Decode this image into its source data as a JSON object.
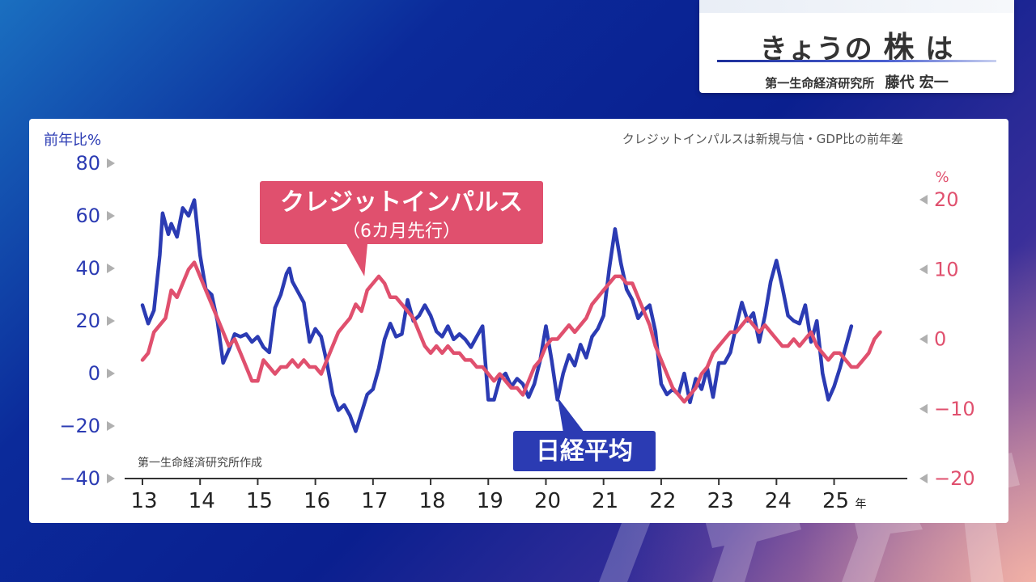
{
  "header": {
    "title_pre": "きょうの",
    "title_strong": "株",
    "title_post": "は",
    "org": "第一生命経済研究所",
    "person": "藤代 宏一"
  },
  "chart_data": {
    "type": "line",
    "note": "クレジットインパルスは新規与信・GDP比の前年差",
    "source": "第一生命経済研究所作成",
    "left_axis": {
      "unit": "前年比%",
      "ticks": [
        80,
        60,
        40,
        20,
        0,
        -20,
        -40
      ],
      "range": [
        -40,
        80
      ]
    },
    "right_axis": {
      "unit": "%",
      "ticks": [
        20,
        10,
        0,
        -10,
        -20
      ],
      "range": [
        -20,
        20
      ]
    },
    "x_axis": {
      "unit": "年",
      "ticks": [
        "13",
        "14",
        "15",
        "16",
        "17",
        "18",
        "19",
        "20",
        "21",
        "22",
        "23",
        "24",
        "25"
      ],
      "range": [
        2013.0,
        2026.2
      ]
    },
    "series": [
      {
        "name": "日経平均",
        "axis": "left",
        "color": "#2b3bb3",
        "points": [
          [
            2013.0,
            26
          ],
          [
            2013.1,
            19
          ],
          [
            2013.2,
            24
          ],
          [
            2013.3,
            45
          ],
          [
            2013.35,
            61
          ],
          [
            2013.45,
            53
          ],
          [
            2013.5,
            57
          ],
          [
            2013.6,
            52
          ],
          [
            2013.7,
            63
          ],
          [
            2013.8,
            60
          ],
          [
            2013.9,
            66
          ],
          [
            2014.0,
            45
          ],
          [
            2014.1,
            32
          ],
          [
            2014.2,
            30
          ],
          [
            2014.3,
            20
          ],
          [
            2014.4,
            4
          ],
          [
            2014.5,
            9
          ],
          [
            2014.6,
            15
          ],
          [
            2014.7,
            14
          ],
          [
            2014.8,
            15
          ],
          [
            2014.9,
            12
          ],
          [
            2015.0,
            14
          ],
          [
            2015.1,
            10
          ],
          [
            2015.2,
            8
          ],
          [
            2015.3,
            25
          ],
          [
            2015.4,
            30
          ],
          [
            2015.5,
            38
          ],
          [
            2015.55,
            40
          ],
          [
            2015.6,
            35
          ],
          [
            2015.7,
            31
          ],
          [
            2015.8,
            27
          ],
          [
            2015.9,
            12
          ],
          [
            2016.0,
            17
          ],
          [
            2016.1,
            14
          ],
          [
            2016.2,
            4
          ],
          [
            2016.3,
            -8
          ],
          [
            2016.4,
            -14
          ],
          [
            2016.5,
            -12
          ],
          [
            2016.6,
            -16
          ],
          [
            2016.7,
            -22
          ],
          [
            2016.8,
            -15
          ],
          [
            2016.9,
            -8
          ],
          [
            2017.0,
            -6
          ],
          [
            2017.1,
            2
          ],
          [
            2017.2,
            13
          ],
          [
            2017.3,
            19
          ],
          [
            2017.4,
            14
          ],
          [
            2017.5,
            15
          ],
          [
            2017.6,
            28
          ],
          [
            2017.7,
            20
          ],
          [
            2017.8,
            22
          ],
          [
            2017.9,
            26
          ],
          [
            2018.0,
            22
          ],
          [
            2018.1,
            16
          ],
          [
            2018.2,
            14
          ],
          [
            2018.3,
            18
          ],
          [
            2018.4,
            13
          ],
          [
            2018.5,
            15
          ],
          [
            2018.6,
            13
          ],
          [
            2018.7,
            10
          ],
          [
            2018.8,
            14
          ],
          [
            2018.9,
            18
          ],
          [
            2019.0,
            -10
          ],
          [
            2019.1,
            -10
          ],
          [
            2019.2,
            -2
          ],
          [
            2019.3,
            0
          ],
          [
            2019.4,
            -5
          ],
          [
            2019.5,
            -2
          ],
          [
            2019.6,
            -4
          ],
          [
            2019.7,
            -9
          ],
          [
            2019.8,
            -4
          ],
          [
            2019.9,
            5
          ],
          [
            2020.0,
            18
          ],
          [
            2020.1,
            5
          ],
          [
            2020.2,
            -10
          ],
          [
            2020.3,
            0
          ],
          [
            2020.4,
            7
          ],
          [
            2020.5,
            3
          ],
          [
            2020.6,
            11
          ],
          [
            2020.7,
            6
          ],
          [
            2020.8,
            14
          ],
          [
            2020.9,
            17
          ],
          [
            2021.0,
            22
          ],
          [
            2021.1,
            40
          ],
          [
            2021.2,
            55
          ],
          [
            2021.3,
            42
          ],
          [
            2021.4,
            32
          ],
          [
            2021.5,
            28
          ],
          [
            2021.6,
            21
          ],
          [
            2021.7,
            24
          ],
          [
            2021.8,
            26
          ],
          [
            2021.9,
            16
          ],
          [
            2022.0,
            -4
          ],
          [
            2022.1,
            -8
          ],
          [
            2022.2,
            -6
          ],
          [
            2022.3,
            -8
          ],
          [
            2022.4,
            0
          ],
          [
            2022.5,
            -11
          ],
          [
            2022.6,
            -2
          ],
          [
            2022.7,
            -6
          ],
          [
            2022.8,
            2
          ],
          [
            2022.9,
            -9
          ],
          [
            2023.0,
            4
          ],
          [
            2023.1,
            4
          ],
          [
            2023.2,
            8
          ],
          [
            2023.3,
            18
          ],
          [
            2023.4,
            27
          ],
          [
            2023.5,
            20
          ],
          [
            2023.6,
            23
          ],
          [
            2023.7,
            12
          ],
          [
            2023.8,
            22
          ],
          [
            2023.9,
            35
          ],
          [
            2024.0,
            43
          ],
          [
            2024.1,
            33
          ],
          [
            2024.2,
            22
          ],
          [
            2024.3,
            20
          ],
          [
            2024.4,
            19
          ],
          [
            2024.5,
            26
          ],
          [
            2024.6,
            12
          ],
          [
            2024.7,
            20
          ],
          [
            2024.8,
            0
          ],
          [
            2024.9,
            -10
          ],
          [
            2025.0,
            -5
          ],
          [
            2025.1,
            2
          ],
          [
            2025.2,
            10
          ],
          [
            2025.3,
            18
          ]
        ]
      },
      {
        "name": "クレジットインパルス",
        "sublabel": "（6カ月先行）",
        "axis": "right",
        "color": "#e0506e",
        "points": [
          [
            2013.0,
            -3
          ],
          [
            2013.1,
            -2
          ],
          [
            2013.2,
            1
          ],
          [
            2013.3,
            2
          ],
          [
            2013.4,
            3
          ],
          [
            2013.5,
            7
          ],
          [
            2013.6,
            6
          ],
          [
            2013.7,
            8
          ],
          [
            2013.8,
            10
          ],
          [
            2013.9,
            11
          ],
          [
            2014.0,
            9
          ],
          [
            2014.1,
            7
          ],
          [
            2014.2,
            5
          ],
          [
            2014.3,
            3
          ],
          [
            2014.4,
            1
          ],
          [
            2014.5,
            -1
          ],
          [
            2014.6,
            0
          ],
          [
            2014.7,
            -2
          ],
          [
            2014.8,
            -4
          ],
          [
            2014.9,
            -6
          ],
          [
            2015.0,
            -6
          ],
          [
            2015.1,
            -3
          ],
          [
            2015.2,
            -4
          ],
          [
            2015.3,
            -5
          ],
          [
            2015.4,
            -4
          ],
          [
            2015.5,
            -4
          ],
          [
            2015.6,
            -3
          ],
          [
            2015.7,
            -4
          ],
          [
            2015.8,
            -3
          ],
          [
            2015.9,
            -4
          ],
          [
            2016.0,
            -4
          ],
          [
            2016.1,
            -5
          ],
          [
            2016.2,
            -3
          ],
          [
            2016.3,
            -1
          ],
          [
            2016.4,
            1
          ],
          [
            2016.5,
            2
          ],
          [
            2016.6,
            3
          ],
          [
            2016.7,
            5
          ],
          [
            2016.8,
            4
          ],
          [
            2016.9,
            7
          ],
          [
            2017.0,
            8
          ],
          [
            2017.1,
            9
          ],
          [
            2017.2,
            8
          ],
          [
            2017.3,
            6
          ],
          [
            2017.4,
            6
          ],
          [
            2017.5,
            5
          ],
          [
            2017.6,
            4
          ],
          [
            2017.7,
            3
          ],
          [
            2017.8,
            1
          ],
          [
            2017.9,
            -1
          ],
          [
            2018.0,
            -2
          ],
          [
            2018.1,
            -1
          ],
          [
            2018.2,
            -2
          ],
          [
            2018.3,
            -1
          ],
          [
            2018.4,
            -2
          ],
          [
            2018.5,
            -2
          ],
          [
            2018.6,
            -3
          ],
          [
            2018.7,
            -3
          ],
          [
            2018.8,
            -4
          ],
          [
            2018.9,
            -4
          ],
          [
            2019.0,
            -5
          ],
          [
            2019.1,
            -6
          ],
          [
            2019.2,
            -5
          ],
          [
            2019.3,
            -6
          ],
          [
            2019.4,
            -7
          ],
          [
            2019.5,
            -7
          ],
          [
            2019.6,
            -8
          ],
          [
            2019.7,
            -6
          ],
          [
            2019.8,
            -4
          ],
          [
            2019.9,
            -3
          ],
          [
            2020.0,
            -1
          ],
          [
            2020.1,
            0
          ],
          [
            2020.2,
            0
          ],
          [
            2020.3,
            1
          ],
          [
            2020.4,
            2
          ],
          [
            2020.5,
            1
          ],
          [
            2020.6,
            2
          ],
          [
            2020.7,
            3
          ],
          [
            2020.8,
            5
          ],
          [
            2020.9,
            6
          ],
          [
            2021.0,
            7
          ],
          [
            2021.1,
            8
          ],
          [
            2021.2,
            9
          ],
          [
            2021.3,
            9
          ],
          [
            2021.4,
            8
          ],
          [
            2021.5,
            8
          ],
          [
            2021.6,
            6
          ],
          [
            2021.7,
            4
          ],
          [
            2021.8,
            2
          ],
          [
            2021.9,
            -1
          ],
          [
            2022.0,
            -3
          ],
          [
            2022.1,
            -5
          ],
          [
            2022.2,
            -7
          ],
          [
            2022.3,
            -8
          ],
          [
            2022.4,
            -9
          ],
          [
            2022.5,
            -8
          ],
          [
            2022.6,
            -7
          ],
          [
            2022.7,
            -5
          ],
          [
            2022.8,
            -4
          ],
          [
            2022.9,
            -2
          ],
          [
            2023.0,
            -1
          ],
          [
            2023.1,
            0
          ],
          [
            2023.2,
            1
          ],
          [
            2023.3,
            1
          ],
          [
            2023.4,
            2
          ],
          [
            2023.5,
            3
          ],
          [
            2023.6,
            2
          ],
          [
            2023.7,
            1
          ],
          [
            2023.8,
            2
          ],
          [
            2023.9,
            1
          ],
          [
            2024.0,
            0
          ],
          [
            2024.1,
            -1
          ],
          [
            2024.2,
            -1
          ],
          [
            2024.3,
            0
          ],
          [
            2024.4,
            -1
          ],
          [
            2024.5,
            0
          ],
          [
            2024.6,
            1
          ],
          [
            2024.7,
            -1
          ],
          [
            2024.8,
            -2
          ],
          [
            2024.9,
            -3
          ],
          [
            2025.0,
            -2
          ],
          [
            2025.1,
            -2
          ],
          [
            2025.2,
            -3
          ],
          [
            2025.3,
            -4
          ],
          [
            2025.4,
            -4
          ],
          [
            2025.5,
            -3
          ],
          [
            2025.6,
            -2
          ],
          [
            2025.7,
            0
          ],
          [
            2025.8,
            1
          ]
        ]
      }
    ]
  }
}
